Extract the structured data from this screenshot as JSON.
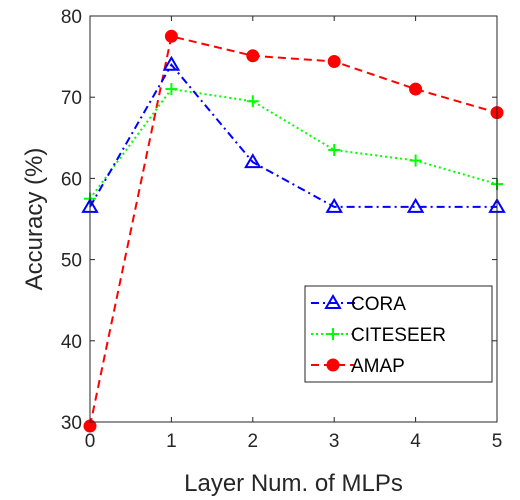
{
  "chart_data": {
    "type": "line",
    "xlabel": "Layer Num. of MLPs",
    "ylabel": "Accuracy (%)",
    "x": [
      0,
      1,
      2,
      3,
      4,
      5
    ],
    "xlim": [
      0,
      5
    ],
    "ylim": [
      30,
      80
    ],
    "xticks": [
      "0",
      "1",
      "2",
      "3",
      "4",
      "5"
    ],
    "yticks": [
      "30",
      "40",
      "50",
      "60",
      "70",
      "80"
    ],
    "grid": false,
    "legend_position": "bottom-right",
    "series": [
      {
        "name": "CORA",
        "values": [
          56.5,
          74.0,
          62.0,
          56.5,
          56.5,
          56.5
        ],
        "color": "#0000ff",
        "marker": "triangle",
        "line_style": "dash-dot"
      },
      {
        "name": "CITESEER",
        "values": [
          57.5,
          71.0,
          69.5,
          63.5,
          62.2,
          59.3
        ],
        "color": "#00ff00",
        "marker": "plus",
        "line_style": "dotted"
      },
      {
        "name": "AMAP",
        "values": [
          29.5,
          77.5,
          75.1,
          74.4,
          71.0,
          68.1
        ],
        "color": "#ff0000",
        "marker": "circle",
        "line_style": "dashed"
      }
    ]
  }
}
